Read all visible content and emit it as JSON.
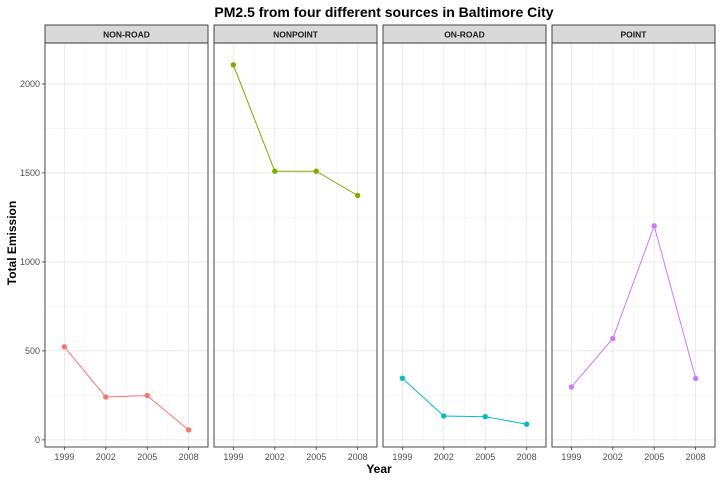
{
  "chart_data": {
    "type": "line",
    "title": "PM2.5 from four different sources in Baltimore City",
    "xlabel": "Year",
    "ylabel": "Total Emission",
    "x": [
      1999,
      2002,
      2005,
      2008
    ],
    "x_tick_labels": [
      "1999",
      "2002",
      "2005",
      "2008"
    ],
    "y_ticks": [
      0,
      500,
      1000,
      1500,
      2000
    ],
    "y_tick_labels": [
      "0",
      "500",
      "1000",
      "1500",
      "2000"
    ],
    "ylim": [
      -40,
      2230
    ],
    "xlim": [
      1997.6,
      2009.4
    ],
    "grid": true,
    "legend": "none",
    "facets": [
      {
        "name": "NON-ROAD",
        "color": "#F8766D",
        "values": [
          522.9,
          240.8,
          248.9,
          55.8
        ]
      },
      {
        "name": "NONPOINT",
        "color": "#7CAE00",
        "values": [
          2107.6,
          1509.5,
          1509.5,
          1373.2
        ]
      },
      {
        "name": "ON-ROAD",
        "color": "#00BFC4",
        "values": [
          346.8,
          134.3,
          130.4,
          88.3
        ]
      },
      {
        "name": "POINT",
        "color": "#C77CFF",
        "values": [
          296.8,
          569.3,
          1202.5,
          344.98
        ]
      }
    ]
  }
}
